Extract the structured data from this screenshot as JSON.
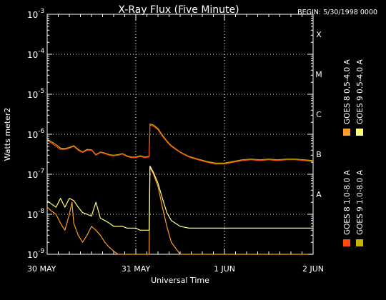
{
  "chart_data": {
    "type": "line",
    "title": "X-Ray Flux (Five Minute)",
    "begin_label": "BEGIN: 5/30/1998 0000",
    "xlabel": "Universal Time",
    "ylabel": "Watts meter2",
    "x_unit": "days",
    "xlim": [
      0,
      3
    ],
    "x_ticks": [
      {
        "value": 0,
        "label": "30 MAY"
      },
      {
        "value": 1,
        "label": "31 MAY"
      },
      {
        "value": 2,
        "label": "1 JUN"
      },
      {
        "value": 3,
        "label": "2 JUN"
      }
    ],
    "y_scale": "log",
    "ylim": [
      1e-09,
      0.001
    ],
    "y_ticks": [
      {
        "value": 1e-09,
        "mant": "10",
        "exp": "-9"
      },
      {
        "value": 1e-08,
        "mant": "10",
        "exp": "-8"
      },
      {
        "value": 1e-07,
        "mant": "10",
        "exp": "-7"
      },
      {
        "value": 1e-06,
        "mant": "10",
        "exp": "-6"
      },
      {
        "value": 1e-05,
        "mant": "10",
        "exp": "-5"
      },
      {
        "value": 0.0001,
        "mant": "10",
        "exp": "-4"
      },
      {
        "value": 0.001,
        "mant": "10",
        "exp": "-3"
      }
    ],
    "flare_classes": [
      {
        "label": "A",
        "value": 1e-08
      },
      {
        "label": "B",
        "value": 1e-07
      },
      {
        "label": "C",
        "value": 1e-06
      },
      {
        "label": "M",
        "value": 1e-05
      },
      {
        "label": "X",
        "value": 0.0001
      }
    ],
    "grid": true,
    "legend": [
      {
        "label": "GOES 8 1.0-8.0 A",
        "color": "#ff4a0a"
      },
      {
        "label": "GOES 8 0.5-4.0 A",
        "color": "#ff9d2a"
      },
      {
        "label": "GOES 9 1.0-8.0 A",
        "color": "#c8b400"
      },
      {
        "label": "GOES 9 0.5-4.0 A",
        "color": "#ffff80"
      }
    ],
    "series": [
      {
        "name": "GOES 8 1.0-8.0 A",
        "color": "#ff4a0a",
        "x": [
          0,
          0.05,
          0.1,
          0.15,
          0.2,
          0.25,
          0.3,
          0.35,
          0.4,
          0.45,
          0.5,
          0.55,
          0.6,
          0.65,
          0.7,
          0.75,
          0.8,
          0.85,
          0.9,
          0.95,
          1.0,
          1.05,
          1.1,
          1.15,
          1.16,
          1.2,
          1.25,
          1.3,
          1.35,
          1.4,
          1.5,
          1.6,
          1.7,
          1.8,
          1.9,
          2.0,
          2.1,
          2.2,
          2.3,
          2.4,
          2.5,
          2.6,
          2.7,
          2.8,
          2.9,
          3.0
        ],
        "y": [
          7e-07,
          6e-07,
          5e-07,
          4.2e-07,
          4.2e-07,
          4.5e-07,
          5e-07,
          4e-07,
          3.5e-07,
          4e-07,
          4e-07,
          3e-07,
          3.5e-07,
          3.3e-07,
          3e-07,
          2.9e-07,
          3e-07,
          3.2e-07,
          2.8e-07,
          2.6e-07,
          2.6e-07,
          2.8e-07,
          2.6e-07,
          2.7e-07,
          1.7e-06,
          1.6e-06,
          1.3e-06,
          9e-07,
          6.5e-07,
          5e-07,
          3.5e-07,
          2.7e-07,
          2.3e-07,
          2e-07,
          1.8e-07,
          1.8e-07,
          2e-07,
          2.2e-07,
          2.3e-07,
          2.2e-07,
          2.3e-07,
          2.2e-07,
          2.3e-07,
          2.3e-07,
          2.2e-07,
          2.1e-07
        ]
      },
      {
        "name": "GOES 8 0.5-4.0 A",
        "color": "#ff9d2a",
        "x": [
          0,
          0.05,
          0.1,
          0.15,
          0.2,
          0.25,
          0.28,
          0.3,
          0.35,
          0.4,
          0.45,
          0.5,
          0.55,
          0.6,
          0.65,
          0.7,
          0.75,
          0.8,
          0.85,
          0.9,
          1.0,
          1.1,
          1.15,
          1.16,
          1.2,
          1.25,
          1.3,
          1.35,
          1.4,
          1.5,
          1.6,
          1.7,
          1.8,
          1.9,
          2.0,
          2.2,
          2.4,
          2.6,
          2.8,
          3.0
        ],
        "y": [
          1.5e-08,
          1.2e-08,
          1e-08,
          6e-09,
          4e-09,
          1e-08,
          2e-08,
          6e-09,
          3e-09,
          2e-09,
          3e-09,
          5e-09,
          4e-09,
          3e-09,
          2e-09,
          1.5e-09,
          1.2e-09,
          1e-09,
          1e-09,
          1e-09,
          1e-09,
          1e-09,
          1e-09,
          1.5e-07,
          1e-07,
          5e-08,
          1.5e-08,
          5e-09,
          2e-09,
          1e-09,
          1e-09,
          1e-09,
          1e-09,
          1e-09,
          1e-09,
          1e-09,
          1e-09,
          1e-09,
          1e-09,
          1e-09
        ]
      },
      {
        "name": "GOES 9 1.0-8.0 A",
        "color": "#c8b400",
        "x": [
          0,
          0.05,
          0.1,
          0.15,
          0.2,
          0.25,
          0.3,
          0.35,
          0.4,
          0.45,
          0.5,
          0.55,
          0.6,
          0.65,
          0.7,
          0.75,
          0.8,
          0.85,
          0.9,
          0.95,
          1.0,
          1.05,
          1.1,
          1.15,
          1.16,
          1.2,
          1.25,
          1.3,
          1.35,
          1.4,
          1.5,
          1.6,
          1.7,
          1.8,
          1.9,
          2.0,
          2.1,
          2.2,
          2.3,
          2.4,
          2.5,
          2.6,
          2.7,
          2.8,
          2.9,
          3.0
        ],
        "y": [
          7.5e-07,
          6.5e-07,
          5.5e-07,
          4.5e-07,
          4.4e-07,
          4.7e-07,
          5.2e-07,
          4.2e-07,
          3.6e-07,
          4.2e-07,
          4.1e-07,
          3.1e-07,
          3.6e-07,
          3.4e-07,
          3.1e-07,
          3e-07,
          3.1e-07,
          3.3e-07,
          2.9e-07,
          2.7e-07,
          2.7e-07,
          2.9e-07,
          2.7e-07,
          2.8e-07,
          1.8e-06,
          1.7e-06,
          1.4e-06,
          9.5e-07,
          6.8e-07,
          5.2e-07,
          3.6e-07,
          2.8e-07,
          2.4e-07,
          2.1e-07,
          1.9e-07,
          1.9e-07,
          2.1e-07,
          2.3e-07,
          2.4e-07,
          2.3e-07,
          2.4e-07,
          2.3e-07,
          2.4e-07,
          2.4e-07,
          2.3e-07,
          2.2e-07
        ]
      },
      {
        "name": "GOES 9 0.5-4.0 A",
        "color": "#ffff80",
        "x": [
          0,
          0.05,
          0.1,
          0.15,
          0.2,
          0.25,
          0.3,
          0.35,
          0.4,
          0.45,
          0.5,
          0.55,
          0.6,
          0.65,
          0.7,
          0.75,
          0.8,
          0.85,
          0.9,
          0.95,
          1.0,
          1.05,
          1.1,
          1.15,
          1.16,
          1.2,
          1.25,
          1.3,
          1.35,
          1.4,
          1.5,
          1.6,
          1.7,
          1.8,
          1.9,
          2.0,
          2.2,
          2.4,
          2.6,
          2.8,
          3.0
        ],
        "y": [
          2.2e-08,
          1.8e-08,
          1.5e-08,
          2.5e-08,
          1.5e-08,
          2.5e-08,
          2.2e-08,
          1.5e-08,
          1.1e-08,
          1e-08,
          9e-09,
          2e-08,
          8e-09,
          7e-09,
          6e-09,
          5e-09,
          5e-09,
          5e-09,
          4.5e-09,
          4.5e-09,
          4.5e-09,
          4e-09,
          4e-09,
          4e-09,
          1.6e-07,
          1.1e-07,
          6e-08,
          2.5e-08,
          1.1e-08,
          7e-09,
          5e-09,
          4.5e-09,
          4.5e-09,
          4.5e-09,
          4.5e-09,
          4.5e-09,
          4.5e-09,
          4.5e-09,
          4.5e-09,
          4.5e-09,
          4.5e-09
        ]
      }
    ]
  }
}
